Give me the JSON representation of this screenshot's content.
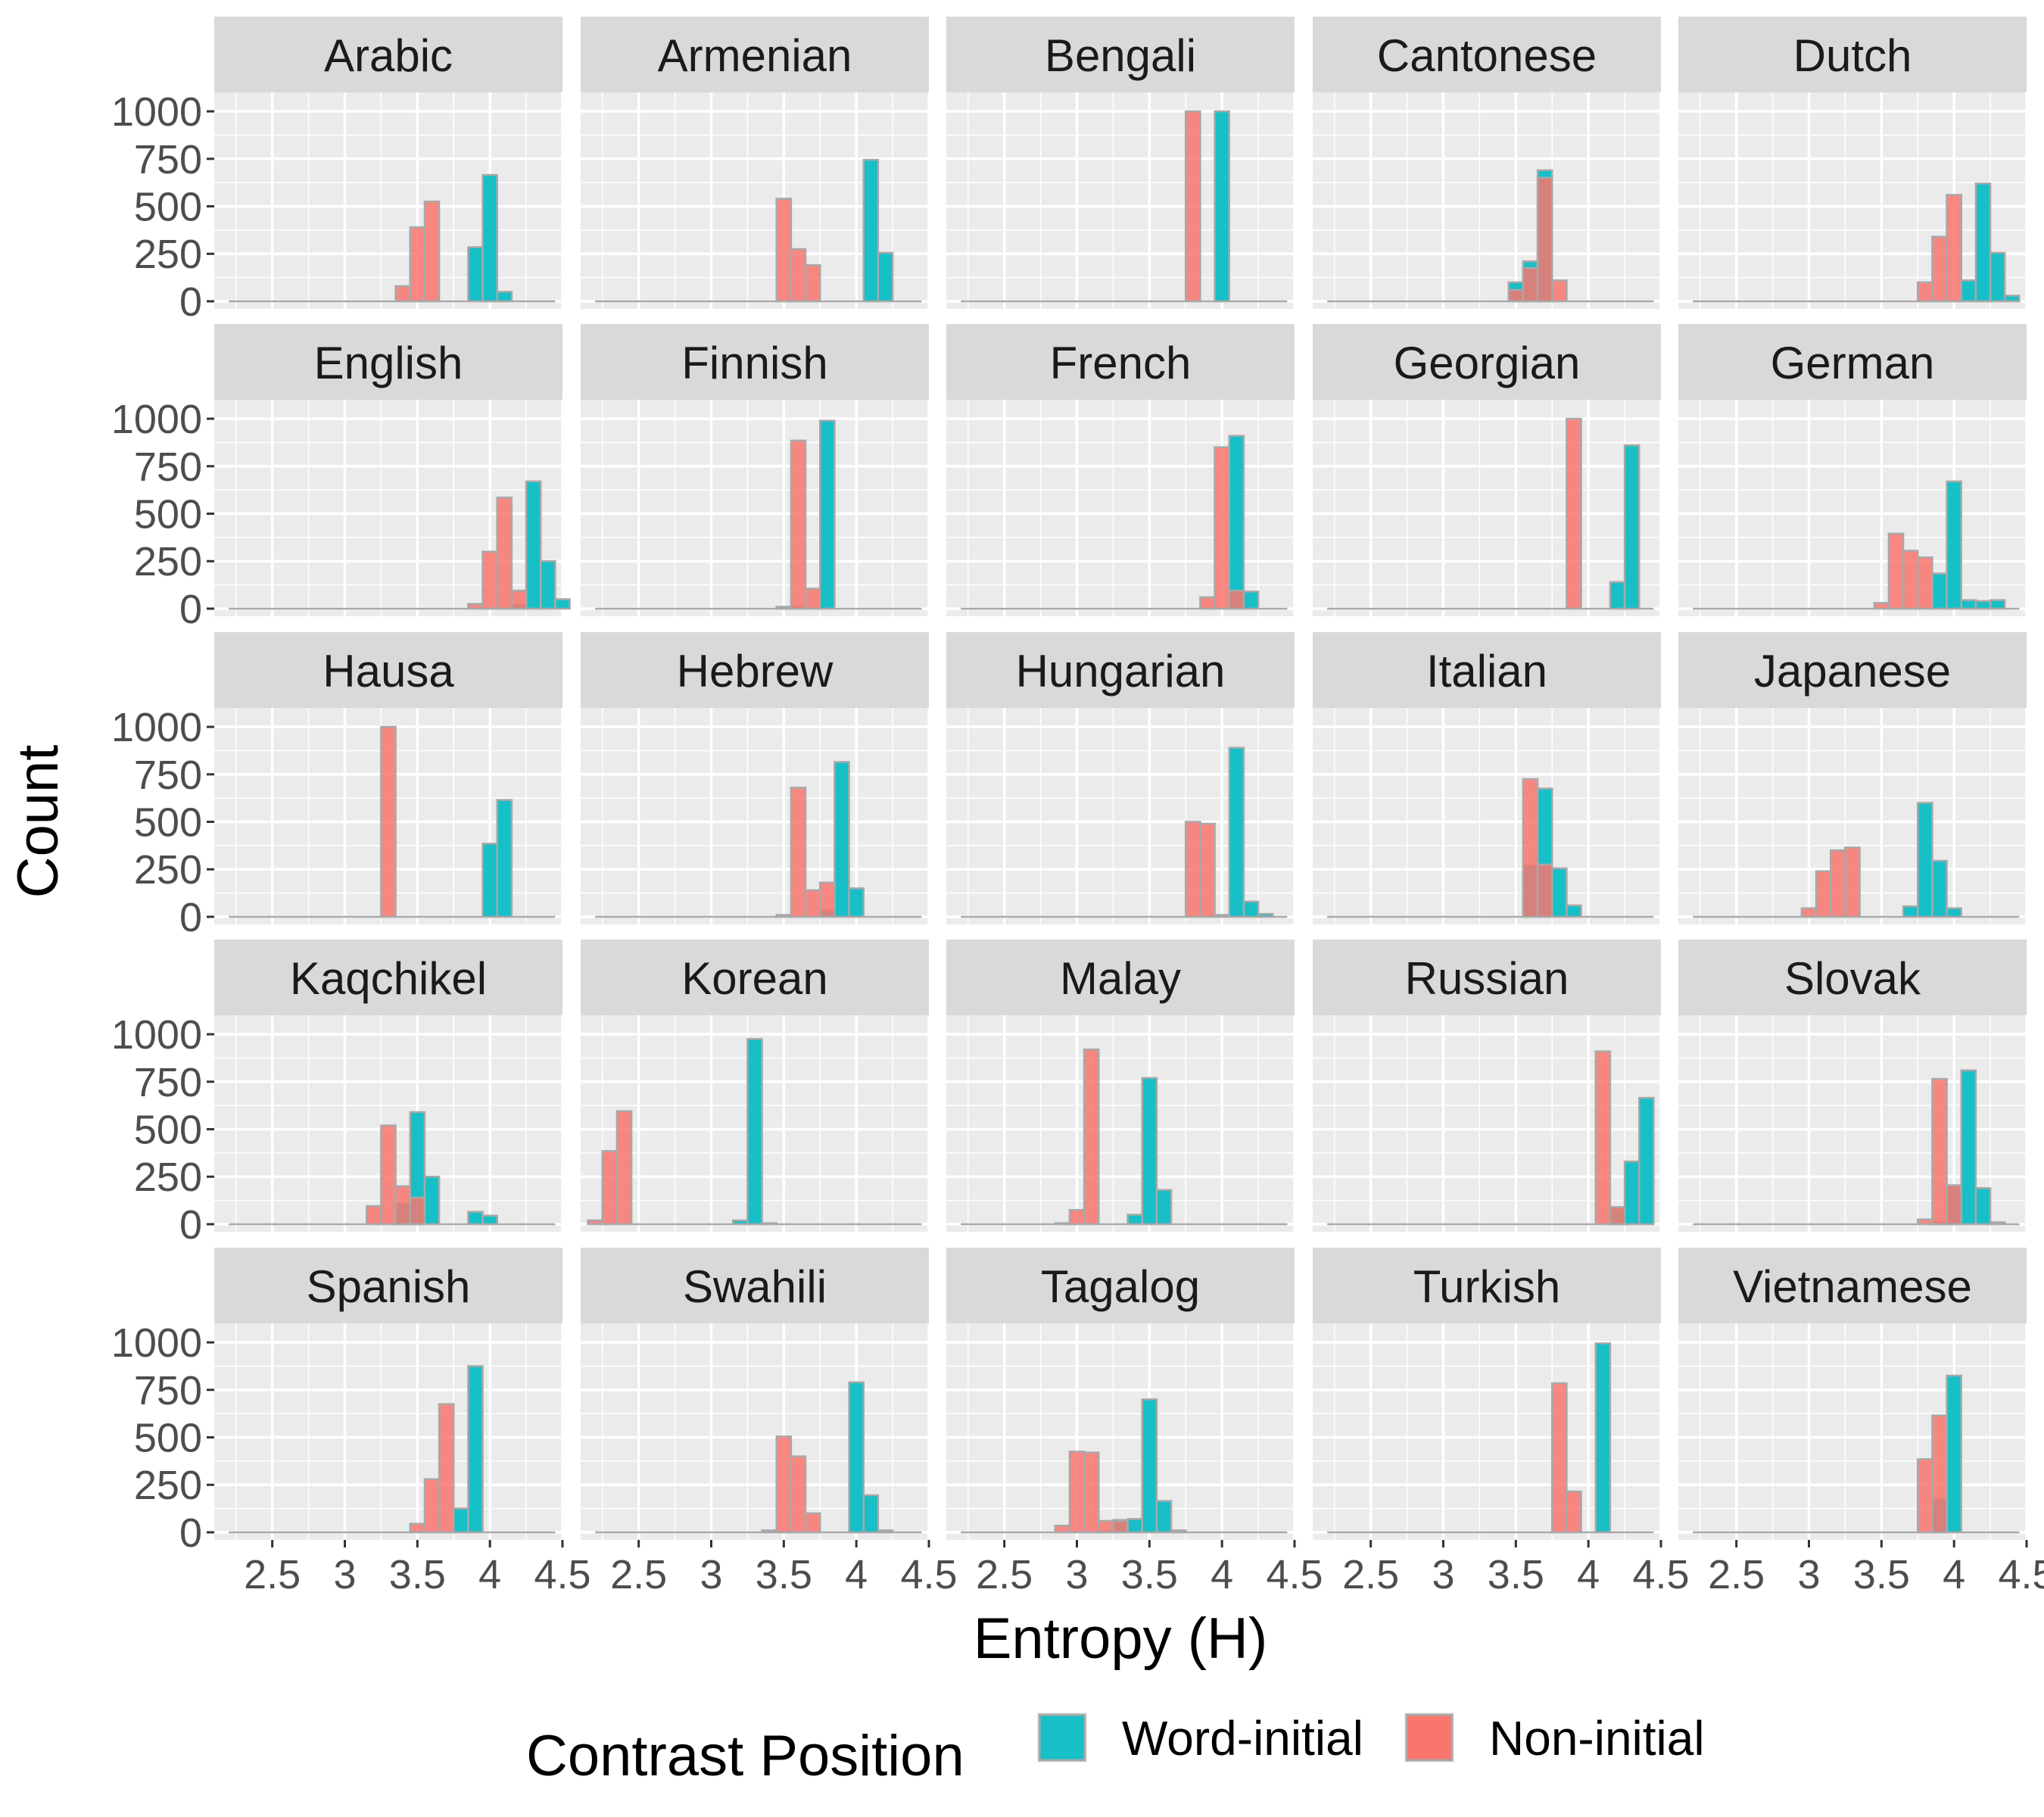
{
  "chart_data": {
    "type": "bar",
    "chart_kind": "faceted histogram",
    "xlabel": "Entropy (H)",
    "ylabel": "Count",
    "xlim": [
      2.1,
      4.5
    ],
    "ylim": [
      0,
      1000
    ],
    "x_ticks": [
      2.5,
      3,
      3.5,
      4,
      4.5
    ],
    "x_tick_labels": [
      "2.5",
      "3",
      "3.5",
      "4",
      "4.5"
    ],
    "y_ticks": [
      0,
      250,
      500,
      750,
      1000
    ],
    "y_tick_labels": [
      "0",
      "250",
      "500",
      "750",
      "1000"
    ],
    "bin_width": 0.1,
    "grid": true,
    "legend": {
      "title": "Contrast Position",
      "position": "bottom",
      "entries": [
        {
          "name": "Word-initial",
          "color": "#17BFC7"
        },
        {
          "name": "Non-initial",
          "color": "#F8766D"
        }
      ]
    },
    "colors": {
      "Word-initial": "#17BFC7",
      "Non-initial": "#F8766D",
      "panel_bg": "#EBEBEB",
      "strip_bg": "#D9D9D9",
      "grid": "#FFFFFF",
      "bar_outline": "#A8A8A8"
    },
    "facets": [
      {
        "language": "Arabic",
        "series": {
          "Word-initial": [
            [
              3.9,
              285
            ],
            [
              4.0,
              665
            ],
            [
              4.1,
              50
            ]
          ],
          "Non-initial": [
            [
              3.4,
              80
            ],
            [
              3.5,
              390
            ],
            [
              3.6,
              525
            ]
          ]
        }
      },
      {
        "language": "Armenian",
        "series": {
          "Word-initial": [
            [
              4.1,
              745
            ],
            [
              4.2,
              255
            ]
          ],
          "Non-initial": [
            [
              3.5,
              540
            ],
            [
              3.6,
              275
            ],
            [
              3.7,
              190
            ]
          ]
        }
      },
      {
        "language": "Bengali",
        "series": {
          "Word-initial": [
            [
              4.0,
              1000
            ]
          ],
          "Non-initial": [
            [
              3.8,
              1000
            ]
          ]
        }
      },
      {
        "language": "Cantonese",
        "series": {
          "Word-initial": [
            [
              3.5,
              100
            ],
            [
              3.6,
              210
            ],
            [
              3.7,
              690
            ]
          ],
          "Non-initial": [
            [
              3.5,
              60
            ],
            [
              3.6,
              175
            ],
            [
              3.7,
              650
            ],
            [
              3.8,
              110
            ]
          ]
        }
      },
      {
        "language": "Dutch",
        "series": {
          "Word-initial": [
            [
              4.1,
              110
            ],
            [
              4.2,
              620
            ],
            [
              4.3,
              255
            ],
            [
              4.4,
              30
            ]
          ],
          "Non-initial": [
            [
              3.8,
              100
            ],
            [
              3.9,
              340
            ],
            [
              4.0,
              560
            ]
          ]
        }
      },
      {
        "language": "English",
        "series": {
          "Word-initial": [
            [
              4.2,
              20
            ],
            [
              4.3,
              670
            ],
            [
              4.4,
              250
            ],
            [
              4.5,
              50
            ]
          ],
          "Non-initial": [
            [
              3.9,
              25
            ],
            [
              4.0,
              300
            ],
            [
              4.1,
              585
            ],
            [
              4.2,
              95
            ]
          ]
        }
      },
      {
        "language": "Finnish",
        "series": {
          "Word-initial": [
            [
              3.6,
              10
            ],
            [
              3.8,
              990
            ]
          ],
          "Non-initial": [
            [
              3.5,
              10
            ],
            [
              3.6,
              885
            ],
            [
              3.7,
              105
            ]
          ]
        }
      },
      {
        "language": "French",
        "series": {
          "Word-initial": [
            [
              4.1,
              910
            ],
            [
              4.2,
              90
            ]
          ],
          "Non-initial": [
            [
              3.9,
              60
            ],
            [
              4.0,
              850
            ],
            [
              4.1,
              95
            ]
          ]
        }
      },
      {
        "language": "Georgian",
        "series": {
          "Word-initial": [
            [
              4.2,
              140
            ],
            [
              4.3,
              860
            ]
          ],
          "Non-initial": [
            [
              3.9,
              1000
            ]
          ]
        }
      },
      {
        "language": "German",
        "series": {
          "Word-initial": [
            [
              3.9,
              185
            ],
            [
              4.0,
              670
            ],
            [
              4.1,
              45
            ],
            [
              4.2,
              40
            ],
            [
              4.3,
              45
            ]
          ],
          "Non-initial": [
            [
              3.5,
              30
            ],
            [
              3.6,
              395
            ],
            [
              3.7,
              305
            ],
            [
              3.8,
              270
            ]
          ]
        }
      },
      {
        "language": "Hausa",
        "series": {
          "Word-initial": [
            [
              4.0,
              385
            ],
            [
              4.1,
              615
            ]
          ],
          "Non-initial": [
            [
              3.3,
              1000
            ]
          ]
        }
      },
      {
        "language": "Hebrew",
        "series": {
          "Word-initial": [
            [
              3.8,
              35
            ],
            [
              3.9,
              815
            ],
            [
              4.0,
              150
            ]
          ],
          "Non-initial": [
            [
              3.5,
              10
            ],
            [
              3.6,
              680
            ],
            [
              3.7,
              140
            ],
            [
              3.8,
              180
            ]
          ]
        }
      },
      {
        "language": "Hungarian",
        "series": {
          "Word-initial": [
            [
              4.0,
              10
            ],
            [
              4.1,
              890
            ],
            [
              4.2,
              80
            ],
            [
              4.3,
              15
            ]
          ],
          "Non-initial": [
            [
              3.8,
              500
            ],
            [
              3.9,
              490
            ]
          ]
        }
      },
      {
        "language": "Italian",
        "series": {
          "Word-initial": [
            [
              3.6,
              270
            ],
            [
              3.7,
              675
            ],
            [
              3.8,
              255
            ],
            [
              3.9,
              60
            ]
          ],
          "Non-initial": [
            [
              3.6,
              725
            ],
            [
              3.7,
              275
            ]
          ]
        }
      },
      {
        "language": "Japanese",
        "series": {
          "Word-initial": [
            [
              3.7,
              55
            ],
            [
              3.8,
              600
            ],
            [
              3.9,
              295
            ],
            [
              4.0,
              45
            ]
          ],
          "Non-initial": [
            [
              3.0,
              45
            ],
            [
              3.1,
              240
            ],
            [
              3.2,
              350
            ],
            [
              3.3,
              365
            ]
          ]
        }
      },
      {
        "language": "Kaqchikel",
        "series": {
          "Word-initial": [
            [
              3.4,
              110
            ],
            [
              3.5,
              590
            ],
            [
              3.6,
              250
            ],
            [
              3.9,
              65
            ],
            [
              4.0,
              45
            ]
          ],
          "Non-initial": [
            [
              3.2,
              95
            ],
            [
              3.3,
              520
            ],
            [
              3.4,
              200
            ],
            [
              3.5,
              140
            ]
          ]
        }
      },
      {
        "language": "Korean",
        "series": {
          "Word-initial": [
            [
              3.2,
              20
            ],
            [
              3.3,
              975
            ],
            [
              3.4,
              5
            ]
          ],
          "Non-initial": [
            [
              2.2,
              20
            ],
            [
              2.3,
              385
            ],
            [
              2.4,
              595
            ]
          ]
        }
      },
      {
        "language": "Malay",
        "series": {
          "Word-initial": [
            [
              3.4,
              50
            ],
            [
              3.5,
              770
            ],
            [
              3.6,
              180
            ]
          ],
          "Non-initial": [
            [
              2.9,
              5
            ],
            [
              3.0,
              75
            ],
            [
              3.1,
              920
            ]
          ]
        }
      },
      {
        "language": "Russian",
        "series": {
          "Word-initial": [
            [
              4.2,
              80
            ],
            [
              4.3,
              330
            ],
            [
              4.4,
              665
            ]
          ],
          "Non-initial": [
            [
              4.1,
              910
            ],
            [
              4.2,
              90
            ]
          ]
        }
      },
      {
        "language": "Slovak",
        "series": {
          "Word-initial": [
            [
              3.9,
              10
            ],
            [
              4.0,
              200
            ],
            [
              4.1,
              810
            ],
            [
              4.2,
              190
            ],
            [
              4.3,
              10
            ]
          ],
          "Non-initial": [
            [
              3.8,
              25
            ],
            [
              3.9,
              765
            ],
            [
              4.0,
              205
            ]
          ]
        }
      },
      {
        "language": "Spanish",
        "series": {
          "Word-initial": [
            [
              3.8,
              125
            ],
            [
              3.9,
              875
            ]
          ],
          "Non-initial": [
            [
              3.5,
              45
            ],
            [
              3.6,
              280
            ],
            [
              3.7,
              675
            ]
          ]
        }
      },
      {
        "language": "Swahili",
        "series": {
          "Word-initial": [
            [
              4.0,
              790
            ],
            [
              4.1,
              195
            ],
            [
              4.2,
              10
            ]
          ],
          "Non-initial": [
            [
              3.4,
              10
            ],
            [
              3.5,
              505
            ],
            [
              3.6,
              400
            ],
            [
              3.7,
              100
            ]
          ]
        }
      },
      {
        "language": "Tagalog",
        "series": {
          "Word-initial": [
            [
              3.2,
              5
            ],
            [
              3.3,
              65
            ],
            [
              3.4,
              70
            ],
            [
              3.5,
              700
            ],
            [
              3.6,
              165
            ],
            [
              3.7,
              10
            ]
          ],
          "Non-initial": [
            [
              2.9,
              35
            ],
            [
              3.0,
              425
            ],
            [
              3.1,
              420
            ],
            [
              3.2,
              60
            ],
            [
              3.3,
              60
            ]
          ]
        }
      },
      {
        "language": "Turkish",
        "series": {
          "Word-initial": [
            [
              4.1,
              995
            ]
          ],
          "Non-initial": [
            [
              3.8,
              785
            ],
            [
              3.9,
              215
            ]
          ]
        }
      },
      {
        "language": "Vietnamese",
        "series": {
          "Word-initial": [
            [
              3.9,
              175
            ],
            [
              4.0,
              825
            ]
          ],
          "Non-initial": [
            [
              3.8,
              385
            ],
            [
              3.9,
              615
            ]
          ]
        }
      }
    ]
  }
}
